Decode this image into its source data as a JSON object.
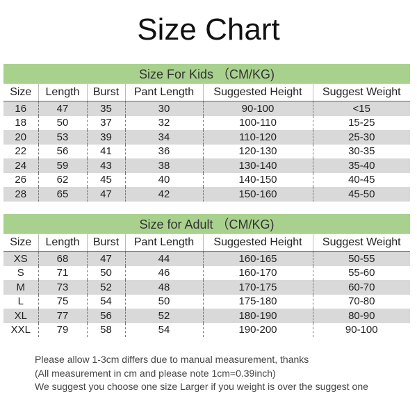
{
  "title": "Size Chart",
  "columns": [
    "Size",
    "Length",
    "Burst",
    "Pant Length",
    "Suggested Height",
    "Suggest Weight"
  ],
  "kids": {
    "heading": "Size For Kids （CM/KG)",
    "rows": [
      [
        "16",
        "47",
        "35",
        "30",
        "90-100",
        "<15"
      ],
      [
        "18",
        "50",
        "37",
        "32",
        "100-110",
        "15-25"
      ],
      [
        "20",
        "53",
        "39",
        "34",
        "110-120",
        "25-30"
      ],
      [
        "22",
        "56",
        "41",
        "36",
        "120-130",
        "30-35"
      ],
      [
        "24",
        "59",
        "43",
        "38",
        "130-140",
        "35-40"
      ],
      [
        "26",
        "62",
        "45",
        "40",
        "140-150",
        "40-45"
      ],
      [
        "28",
        "65",
        "47",
        "42",
        "150-160",
        "45-50"
      ]
    ]
  },
  "adult": {
    "heading": "Size for Adult （CM/KG)",
    "rows": [
      [
        "XS",
        "68",
        "47",
        "44",
        "160-165",
        "50-55"
      ],
      [
        "S",
        "71",
        "50",
        "46",
        "160-170",
        "55-60"
      ],
      [
        "M",
        "73",
        "52",
        "48",
        "170-175",
        "60-70"
      ],
      [
        "L",
        "75",
        "54",
        "50",
        "175-180",
        "70-80"
      ],
      [
        "XL",
        "77",
        "56",
        "52",
        "180-190",
        "80-90"
      ],
      [
        "XXL",
        "79",
        "58",
        "54",
        "190-200",
        "90-100"
      ]
    ]
  },
  "notes": [
    "Please allow 1-3cm differs due to manual measurement, thanks",
    "(All measurement in cm and please note 1cm=0.39inch)",
    "We suggest you choose one size Larger if you weight is over the suggest one"
  ],
  "colors": {
    "band": "#a9d18e",
    "stripe": "#d9d9d9"
  }
}
